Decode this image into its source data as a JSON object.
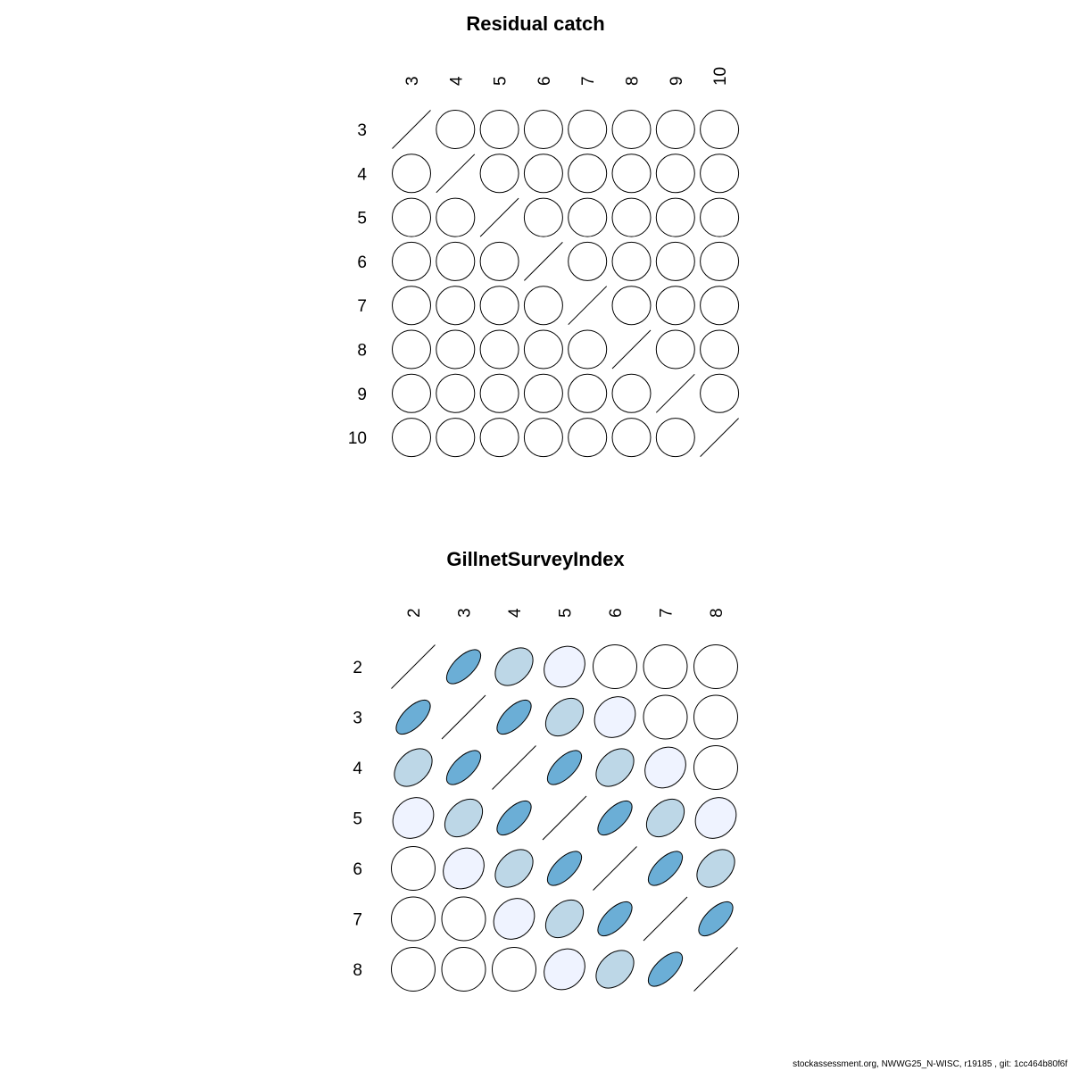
{
  "chart_data": [
    {
      "type": "heatmap",
      "subtype": "correlation-ellipse",
      "title": "Residual catch",
      "labels": [
        "3",
        "4",
        "5",
        "6",
        "7",
        "8",
        "9",
        "10"
      ],
      "diagonal": "line",
      "correlations": [
        [
          1,
          0,
          0,
          0,
          0,
          0,
          0,
          0
        ],
        [
          0,
          1,
          0,
          0,
          0,
          0,
          0,
          0
        ],
        [
          0,
          0,
          1,
          0,
          0,
          0,
          0,
          0
        ],
        [
          0,
          0,
          0,
          1,
          0,
          0,
          0,
          0
        ],
        [
          0,
          0,
          0,
          0,
          1,
          0,
          0,
          0
        ],
        [
          0,
          0,
          0,
          0,
          0,
          1,
          0,
          0
        ],
        [
          0,
          0,
          0,
          0,
          0,
          0,
          1,
          0
        ],
        [
          0,
          0,
          0,
          0,
          0,
          0,
          0,
          1
        ]
      ]
    },
    {
      "type": "heatmap",
      "subtype": "correlation-ellipse",
      "title": "GillnetSurveyIndex",
      "labels": [
        "2",
        "3",
        "4",
        "5",
        "6",
        "7",
        "8"
      ],
      "diagonal": "line",
      "correlations": [
        [
          1,
          0.65,
          0.35,
          0.15,
          0,
          0,
          0
        ],
        [
          0.65,
          1,
          0.65,
          0.35,
          0.15,
          0,
          0
        ],
        [
          0.35,
          0.65,
          1,
          0.65,
          0.35,
          0.15,
          0
        ],
        [
          0.15,
          0.35,
          0.65,
          1,
          0.65,
          0.35,
          0.15
        ],
        [
          0,
          0.15,
          0.35,
          0.65,
          1,
          0.65,
          0.35
        ],
        [
          0,
          0,
          0.15,
          0.35,
          0.65,
          1,
          0.65
        ],
        [
          0,
          0,
          0,
          0.15,
          0.35,
          0.65,
          1
        ]
      ]
    }
  ],
  "colors": {
    "high": "#6BAED6",
    "mid": "#BDD7E7",
    "low": "#EFF3FF",
    "zero": "#FFFFFF",
    "stroke": "#000000"
  },
  "footer": "stockassessment.org, NWWG25_N-WISC, r19185 , git: 1cc464b80f6f"
}
